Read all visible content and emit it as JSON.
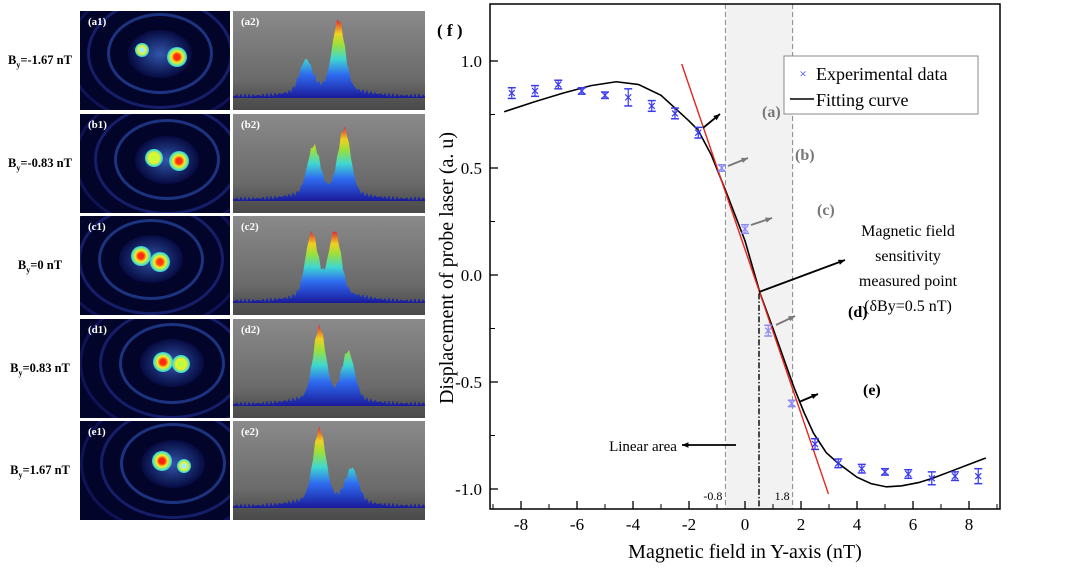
{
  "panels": [
    {
      "label_main": "B",
      "label_sub": "y",
      "label_value": "=-1.67 nT",
      "tag1": "(a1)",
      "tag2": "(a2)"
    },
    {
      "label_main": "B",
      "label_sub": "y",
      "label_value": "=-0.83 nT",
      "tag1": "(b1)",
      "tag2": "(b2)"
    },
    {
      "label_main": "B",
      "label_sub": "y",
      "label_value": "=0 nT",
      "tag1": "(c1)",
      "tag2": "(c2)"
    },
    {
      "label_main": "B",
      "label_sub": "y",
      "label_value": "=0.83 nT",
      "tag1": "(d1)",
      "tag2": "(d2)"
    },
    {
      "label_main": "B",
      "label_sub": "y",
      "label_value": "=1.67 nT",
      "tag1": "(e1)",
      "tag2": "(e2)"
    }
  ],
  "chart_data": {
    "type": "scatter",
    "panel_tag": "( f )",
    "xlabel": "Magnetic field in Y-axis (nT)",
    "ylabel": "Displacement of probe laser (a. u)",
    "xlim": [
      -9.1,
      9.1
    ],
    "ylim": [
      -1.09,
      1.16
    ],
    "xticks": [
      -8,
      -6,
      -4,
      -2,
      0,
      2,
      4,
      6,
      8
    ],
    "xtick_labels": [
      "-8",
      "-6",
      "-4",
      "-2",
      "0",
      "2",
      "4",
      "6",
      "8"
    ],
    "yticks": [
      1.0,
      0.5,
      0.0,
      -0.5,
      -1.0
    ],
    "ytick_labels": [
      "1.0",
      "0.5",
      "0.0",
      "-0.5",
      "-1.0"
    ],
    "grid": false,
    "legend_position": "top-right",
    "colors": {
      "data": "#3a3af0",
      "data_light": "#8a8af5",
      "fit": "#000000",
      "linear_fit": "#e8231b",
      "shade": "#f2f2f2"
    },
    "series": [
      {
        "name": "Experimental data",
        "type": "scatter-errorbar",
        "x": [
          -8.33,
          -7.5,
          -6.67,
          -5.83,
          -5.0,
          -4.17,
          -3.33,
          -2.5,
          -1.67,
          -0.83,
          0.0,
          0.83,
          1.67,
          2.5,
          3.33,
          4.17,
          5.0,
          5.83,
          6.67,
          7.5,
          8.33
        ],
        "y": [
          0.85,
          0.86,
          0.89,
          0.86,
          0.84,
          0.83,
          0.79,
          0.755,
          0.665,
          0.5,
          0.215,
          -0.26,
          -0.6,
          -0.79,
          -0.88,
          -0.905,
          -0.92,
          -0.93,
          -0.95,
          -0.94,
          -0.94
        ],
        "err": [
          0.025,
          0.025,
          0.02,
          0.015,
          0.015,
          0.04,
          0.025,
          0.025,
          0.025,
          0.015,
          0.02,
          0.025,
          0.015,
          0.025,
          0.02,
          0.02,
          0.015,
          0.02,
          0.03,
          0.02,
          0.035
        ]
      },
      {
        "name": "Fitting curve",
        "type": "line",
        "x": [
          -8.6,
          -7.5,
          -6.5,
          -5.5,
          -4.6,
          -3.8,
          -3.0,
          -2.5,
          -2.0,
          -1.68,
          -1.2,
          -0.7,
          0.0,
          0.54,
          1.0,
          1.74,
          2.1,
          2.45,
          2.9,
          3.33,
          4.0,
          4.5,
          5.05,
          5.6,
          6.2,
          6.7,
          7.4,
          8.0,
          8.6
        ],
        "y": [
          0.763,
          0.81,
          0.85,
          0.885,
          0.903,
          0.89,
          0.84,
          0.78,
          0.72,
          0.678,
          0.56,
          0.397,
          0.16,
          -0.086,
          -0.25,
          -0.522,
          -0.64,
          -0.74,
          -0.83,
          -0.88,
          -0.945,
          -0.975,
          -0.99,
          -0.985,
          -0.97,
          -0.95,
          -0.915,
          -0.885,
          -0.855
        ]
      },
      {
        "type": "line",
        "role": "linear fit",
        "x": [
          -2.26,
          2.98
        ],
        "y": [
          0.986,
          -1.023
        ]
      }
    ],
    "linear_area": {
      "x_range": [
        -0.8,
        1.8
      ],
      "labels": [
        "-0.8",
        "1.8"
      ],
      "text": "Linear area"
    },
    "sensitivity_point": {
      "x": 0.5,
      "y": -0.086
    },
    "annotations": {
      "a": "(a)",
      "b": "(b)",
      "c": "(c)",
      "d": "(d)",
      "e": "(e)",
      "sensitivity_lines": [
        "Magnetic field",
        "sensitivity",
        "measured point",
        "(δBy=0.5 nT)"
      ]
    }
  }
}
